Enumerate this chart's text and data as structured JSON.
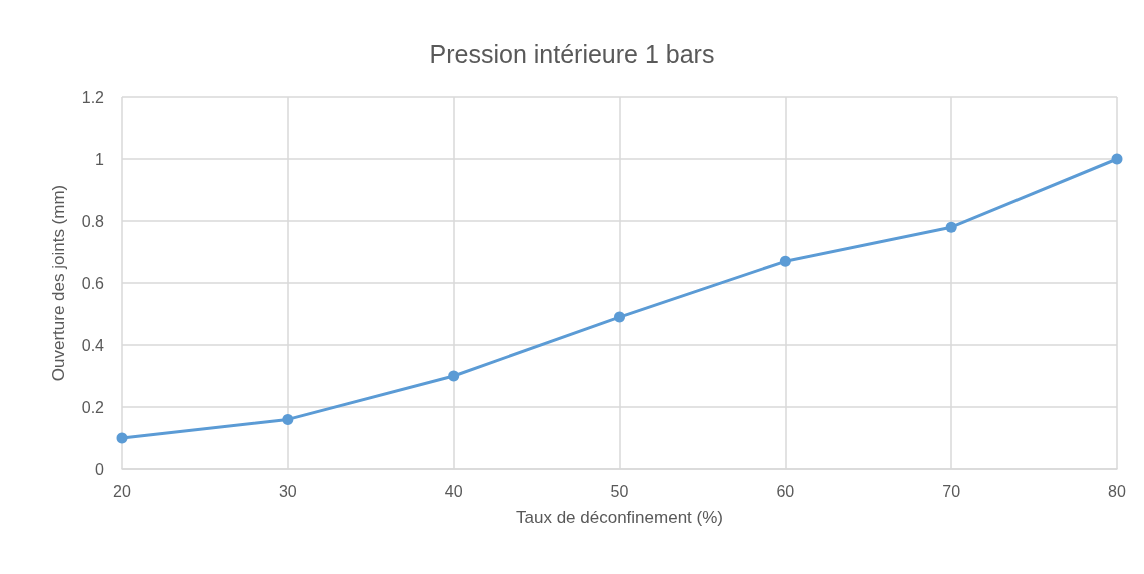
{
  "chart_data": {
    "type": "line",
    "title": "Pression intérieure 1 bars",
    "xlabel": "Taux de déconfinement (%)",
    "ylabel": "Ouverture des joints (mm)",
    "x": [
      20,
      30,
      40,
      50,
      60,
      70,
      80
    ],
    "series": [
      {
        "color": "#5b9bd5",
        "values": [
          0.1,
          0.16,
          0.3,
          0.49,
          0.67,
          0.78,
          1.0
        ]
      }
    ],
    "xlim": [
      20,
      80
    ],
    "xticks": [
      20,
      30,
      40,
      50,
      60,
      70,
      80
    ],
    "ylim": [
      0,
      1.2
    ],
    "yticks": [
      0,
      0.2,
      0.4,
      0.6,
      0.8,
      1,
      1.2
    ],
    "grid": true,
    "marker": "circle",
    "line_style": "solid"
  }
}
